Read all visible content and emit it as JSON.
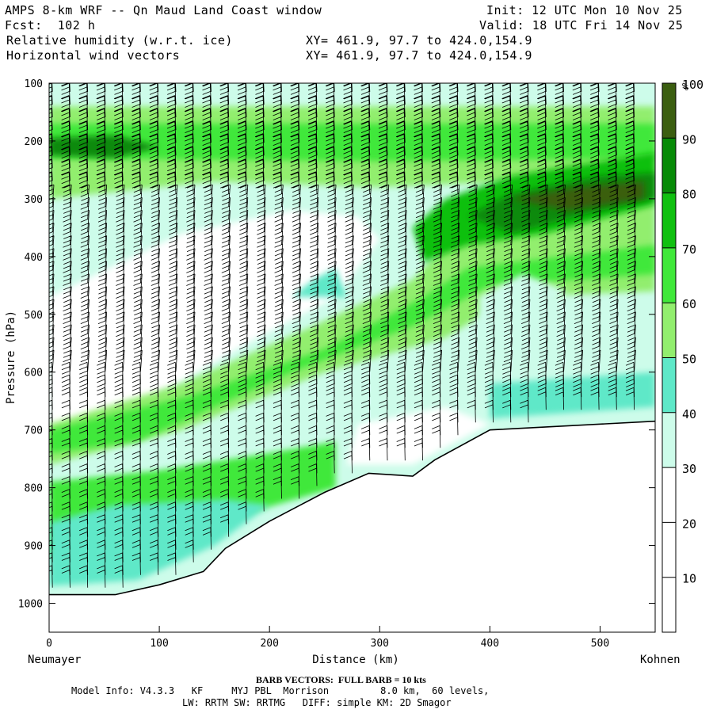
{
  "header": {
    "title": "AMPS 8-km WRF -- Qn Maud Land Coast window",
    "forecast": "Fcst:  102 h",
    "init": "Init: 12 UTC Mon 10 Nov 25",
    "valid": "Valid: 18 UTC Fri 14 Nov 25",
    "field1": "Relative humidity (w.r.t. ice)",
    "field2": "Horizontal wind vectors",
    "xy1": "XY= 461.9, 97.7 to 424.0,154.9",
    "xy2": "XY= 461.9, 97.7 to 424.0,154.9"
  },
  "chart_data": {
    "type": "heatmap",
    "title": "",
    "xlabel": "Distance (km)",
    "ylabel": "Pressure (hPa)",
    "xlim": [
      0,
      550
    ],
    "ylim": [
      1050,
      100
    ],
    "x_ticks": [
      0,
      100,
      200,
      300,
      400,
      500
    ],
    "y_ticks": [
      100,
      200,
      300,
      400,
      500,
      600,
      700,
      800,
      900,
      1000
    ],
    "left_endpoint": "Neumayer",
    "right_endpoint": "Kohnen",
    "colorbar": {
      "unit": "%",
      "levels": [
        10,
        20,
        30,
        40,
        50,
        60,
        70,
        80,
        90,
        100
      ],
      "colors": [
        "#ffffff",
        "#ffffff",
        "#ffffff",
        "#cdfcea",
        "#5ee8c8",
        "#92ee6e",
        "#40e83a",
        "#10c010",
        "#078a07",
        "#3b5e10"
      ]
    },
    "terrain_surface_pressure": [
      [
        0,
        985
      ],
      [
        60,
        985
      ],
      [
        100,
        968
      ],
      [
        140,
        945
      ],
      [
        160,
        905
      ],
      [
        200,
        858
      ],
      [
        250,
        808
      ],
      [
        290,
        775
      ],
      [
        330,
        780
      ],
      [
        350,
        752
      ],
      [
        400,
        700
      ],
      [
        550,
        685
      ]
    ],
    "barb_vectors_note": "BARB VECTORS: FULL BARB = 10 kts"
  },
  "footer": {
    "barb": "BARB VECTORS:  FULL BARB = 10 kts",
    "model1": "Model Info: V4.3.3   KF     MYJ PBL  Morrison         8.0 km,  60 levels,",
    "model2": "LW: RRTM SW: RRTMG   DIFF: simple KM: 2D Smagor"
  }
}
